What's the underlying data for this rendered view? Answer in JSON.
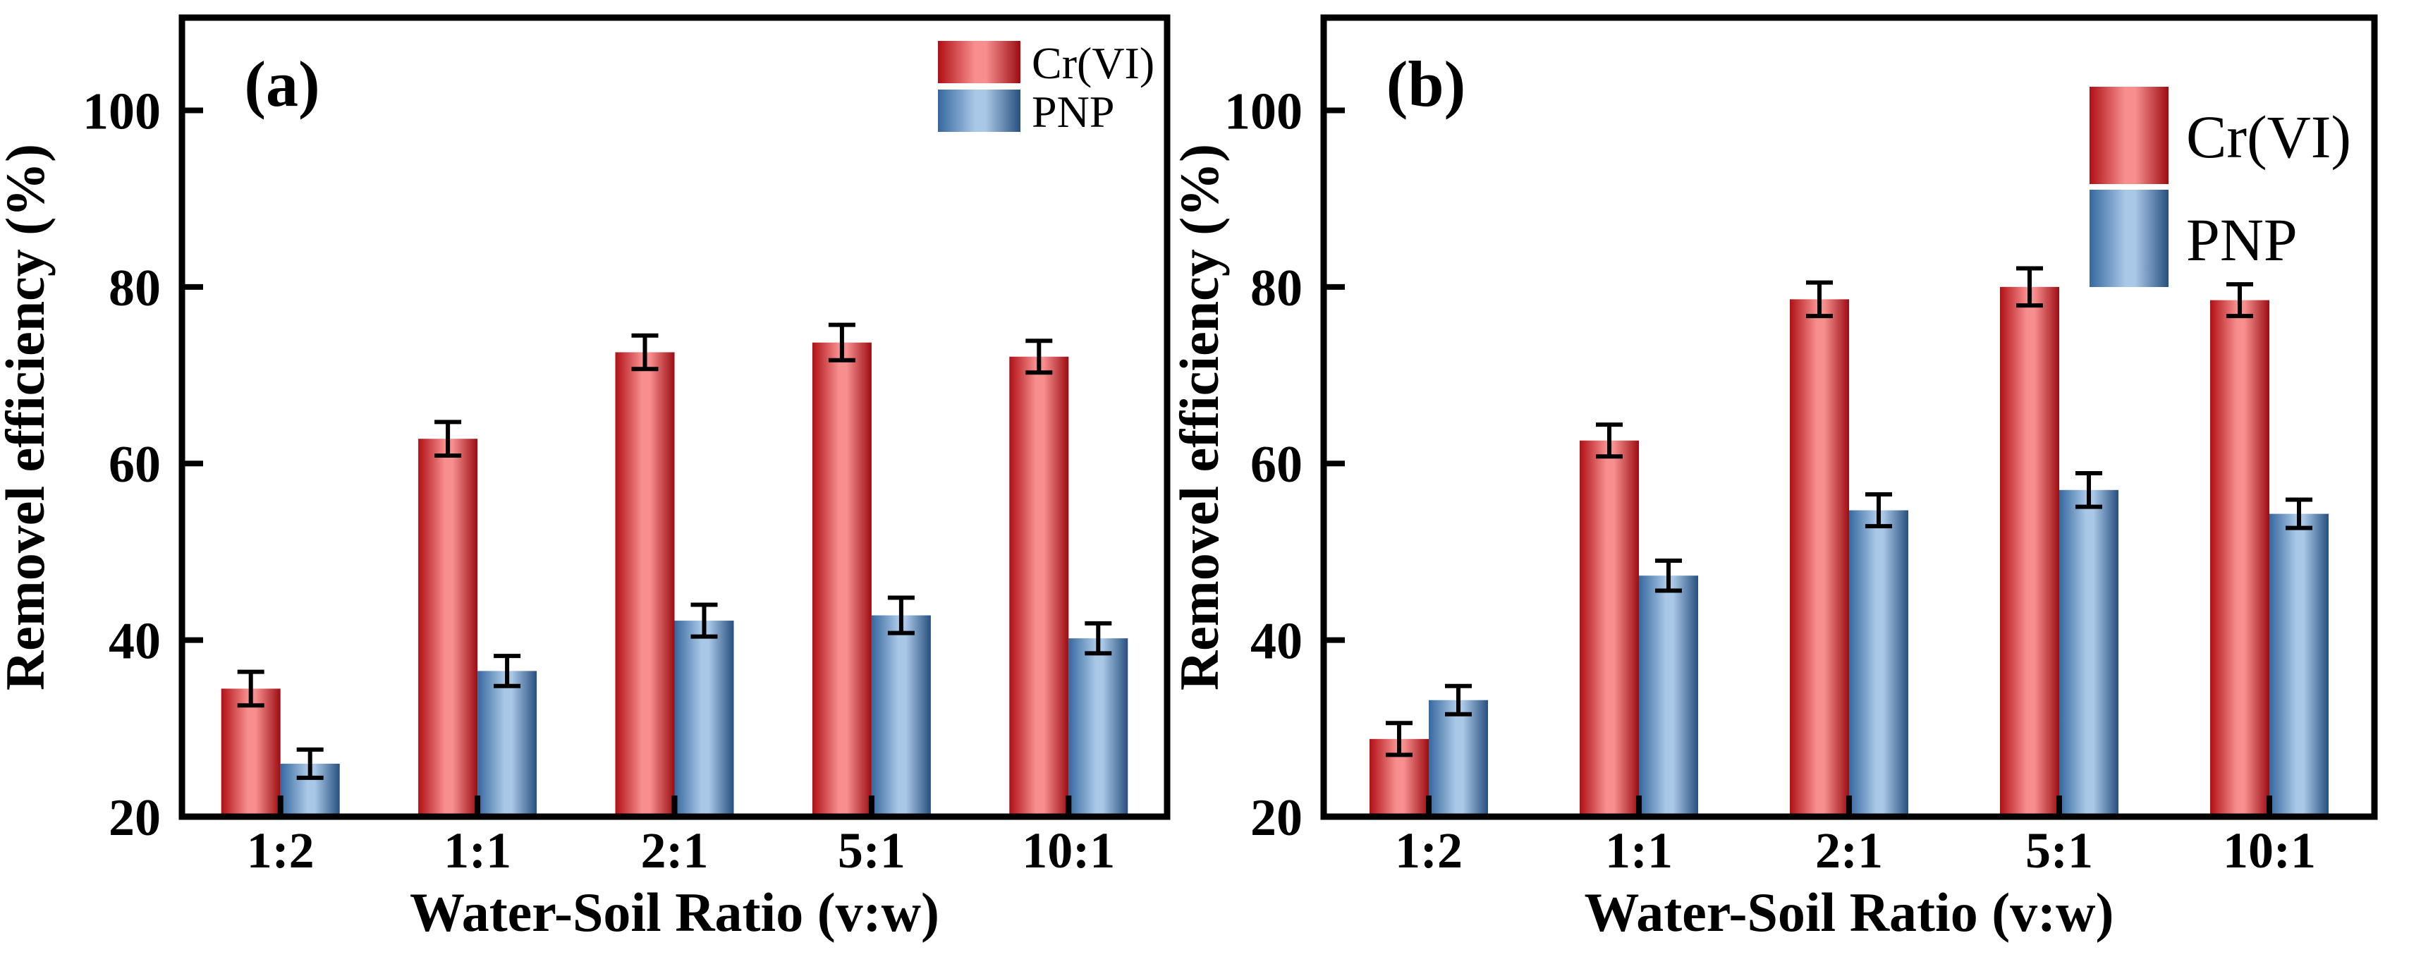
{
  "figure": {
    "background": "#ffffff",
    "axis_color": "#000000",
    "colors": {
      "crvi_dark": "#b01015",
      "crvi_light": "#f78f8f",
      "pnp_dark": "#2e5d94",
      "pnp_light": "#a9c7e6"
    }
  },
  "chart_data": [
    {
      "type": "bar",
      "panel_label": "(a)",
      "xlabel": "Water-Soil Ratio (v:w)",
      "ylabel": "Removel efficiency (%)",
      "categories": [
        "1:2",
        "1:1",
        "2:1",
        "5:1",
        "10:1"
      ],
      "ylim": [
        20,
        110.5
      ],
      "yticks": [
        20,
        40,
        60,
        80,
        100
      ],
      "grid": false,
      "legend_position": "top-right-inside",
      "legend_entries": [
        "Cr(VI)",
        "PNP"
      ],
      "series": [
        {
          "name": "Cr(VI)",
          "color_key": "crvi",
          "values": [
            34.5,
            62.8,
            72.6,
            73.7,
            72.1
          ],
          "errors": [
            1.9,
            1.9,
            1.9,
            2.0,
            1.8
          ]
        },
        {
          "name": "PNP",
          "color_key": "pnp",
          "values": [
            26.0,
            36.5,
            42.2,
            42.8,
            40.2
          ],
          "errors": [
            1.6,
            1.7,
            1.8,
            2.0,
            1.7
          ]
        }
      ]
    },
    {
      "type": "bar",
      "panel_label": "(b)",
      "xlabel": "Water-Soil Ratio (v:w)",
      "ylabel": "Removel efficiency (%)",
      "categories": [
        "1:2",
        "1:1",
        "2:1",
        "5:1",
        "10:1"
      ],
      "ylim": [
        20,
        110.5
      ],
      "yticks": [
        20,
        40,
        60,
        80,
        100
      ],
      "grid": false,
      "legend_position": "top-right-inside",
      "legend_entries": [
        "Cr(VI)",
        "PNP"
      ],
      "series": [
        {
          "name": "Cr(VI)",
          "color_key": "crvi",
          "values": [
            28.8,
            62.6,
            78.6,
            80.0,
            78.5
          ],
          "errors": [
            1.8,
            1.8,
            1.9,
            2.1,
            1.8
          ]
        },
        {
          "name": "PNP",
          "color_key": "pnp",
          "values": [
            33.2,
            47.3,
            54.7,
            57.0,
            54.3
          ],
          "errors": [
            1.6,
            1.7,
            1.8,
            1.9,
            1.6
          ]
        }
      ]
    }
  ]
}
